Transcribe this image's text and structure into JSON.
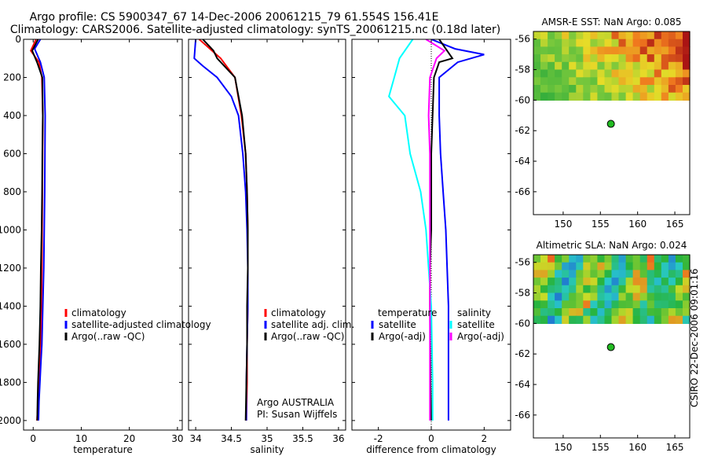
{
  "header": {
    "line1": "Argo profile: CS 5900347_67 14-Dec-2006 20061215_79 61.554S 156.41E",
    "line2": "Climatology: CARS2006. Satellite-adjusted climatology: synTS_20061215.nc (0.18d later)"
  },
  "credit": "CSIRO 22-Dec-2006 09:01:16",
  "chart_data": [
    {
      "type": "line",
      "id": "temperature",
      "xlabel": "temperature",
      "ylabel": "",
      "xlim": [
        -2,
        31
      ],
      "ylim": [
        2050,
        0
      ],
      "xticks": [
        0,
        10,
        20,
        30
      ],
      "yticks": [
        0,
        200,
        400,
        600,
        800,
        1000,
        1200,
        1400,
        1600,
        1800,
        2000
      ],
      "legend": [
        "climatology",
        "satellite-adjusted climatology",
        "Argo(..raw -QC)"
      ],
      "legend_position": "center-right",
      "series": [
        {
          "name": "climatology",
          "color": "#ff0000",
          "x": [
            0.6,
            -0.5,
            1.2,
            1.8,
            2.0,
            1.95,
            1.9,
            1.85,
            1.8,
            1.7,
            1.55,
            1.4,
            1.2,
            1.0,
            0.8
          ],
          "y": [
            0,
            60,
            120,
            200,
            400,
            600,
            800,
            1000,
            1200,
            1400,
            1600,
            1700,
            1800,
            1900,
            2000
          ]
        },
        {
          "name": "satellite-adjusted climatology",
          "color": "#0000ff",
          "x": [
            1.5,
            0.3,
            1.5,
            2.3,
            2.5,
            2.45,
            2.4,
            2.3,
            2.2,
            2.0,
            1.8,
            1.6,
            1.4,
            1.2,
            1.1
          ],
          "y": [
            0,
            50,
            120,
            200,
            400,
            600,
            800,
            1000,
            1200,
            1400,
            1600,
            1700,
            1800,
            1900,
            2000
          ]
        },
        {
          "name": "Argo(..raw -QC)",
          "color": "#000000",
          "x": [
            1.0,
            -0.2,
            0.8,
            1.9,
            2.0,
            1.9,
            1.85,
            1.75,
            1.6,
            1.5,
            1.3,
            1.15,
            1.0,
            0.9,
            0.85
          ],
          "y": [
            0,
            60,
            120,
            200,
            400,
            600,
            800,
            1000,
            1200,
            1400,
            1600,
            1700,
            1800,
            1900,
            2000
          ]
        }
      ]
    },
    {
      "type": "line",
      "id": "salinity",
      "xlabel": "salinity",
      "ylabel": "",
      "xlim": [
        33.9,
        36.1
      ],
      "ylim": [
        2050,
        0
      ],
      "xticks": [
        34,
        34.5,
        35,
        35.5,
        36
      ],
      "legend": [
        "climatology",
        "satellite adj. clim.",
        "Argo(..raw -QC)"
      ],
      "legend_position": "center-right",
      "annotations": [
        "Argo AUSTRALIA",
        "PI: Susan Wijffels"
      ],
      "series": [
        {
          "name": "climatology",
          "color": "#ff0000",
          "x": [
            34.05,
            34.2,
            34.35,
            34.55,
            34.64,
            34.7,
            34.72,
            34.73,
            34.73,
            34.73,
            34.72,
            34.72,
            34.71
          ],
          "y": [
            0,
            50,
            100,
            200,
            400,
            600,
            800,
            1000,
            1200,
            1400,
            1600,
            1800,
            2000
          ]
        },
        {
          "name": "satellite adj. clim.",
          "color": "#0000ff",
          "x": [
            34.0,
            33.98,
            34.1,
            34.3,
            34.5,
            34.6,
            34.66,
            34.7,
            34.72,
            34.73,
            34.73,
            34.72,
            34.71,
            34.71
          ],
          "y": [
            0,
            100,
            140,
            200,
            300,
            400,
            600,
            800,
            1000,
            1200,
            1400,
            1600,
            1800,
            2000
          ]
        },
        {
          "name": "Argo(..raw -QC)",
          "color": "#000000",
          "x": [
            34.1,
            34.25,
            34.3,
            34.55,
            34.65,
            34.7,
            34.72,
            34.73,
            34.73,
            34.72,
            34.72,
            34.71,
            34.7
          ],
          "y": [
            0,
            60,
            100,
            200,
            400,
            600,
            800,
            1000,
            1200,
            1400,
            1600,
            1800,
            2000
          ]
        }
      ]
    },
    {
      "type": "line",
      "id": "difference",
      "xlabel": "difference from climatology",
      "ylabel": "",
      "xlim": [
        -3,
        3
      ],
      "ylim": [
        2050,
        0
      ],
      "xticks": [
        -2,
        0,
        2
      ],
      "legend_groups": [
        {
          "title": "temperature",
          "entries": [
            "satellite",
            "Argo(-adj)"
          ]
        },
        {
          "title": "salinity",
          "entries": [
            "satellite",
            "Argo(-adj)"
          ]
        }
      ],
      "legend_position": "center",
      "series": [
        {
          "name": "temperature satellite",
          "color": "#0000ff",
          "x": [
            0,
            0.9,
            2.0,
            1.0,
            0.3,
            0.3,
            0.35,
            0.45,
            0.55,
            0.6,
            0.65,
            0.65,
            0.65
          ],
          "y": [
            0,
            50,
            80,
            120,
            200,
            400,
            600,
            800,
            1000,
            1200,
            1400,
            1800,
            2000
          ]
        },
        {
          "name": "temperature Argo(-adj)",
          "color": "#000000",
          "x": [
            0.3,
            0.8,
            0.3,
            0.1,
            0.05,
            0.0,
            0.0,
            0.0,
            -0.05,
            -0.05,
            -0.03,
            0.0
          ],
          "y": [
            0,
            100,
            120,
            200,
            400,
            600,
            800,
            1000,
            1200,
            1400,
            1800,
            2000
          ]
        },
        {
          "name": "salinity satellite",
          "color": "#00ffff",
          "x": [
            -0.7,
            -1.2,
            -1.4,
            -1.6,
            -1.0,
            -0.8,
            -0.4,
            -0.2,
            -0.1,
            0.0,
            0.05,
            0.05
          ],
          "y": [
            0,
            100,
            200,
            300,
            400,
            600,
            800,
            1000,
            1200,
            1400,
            1800,
            2000
          ]
        },
        {
          "name": "salinity Argo(-adj)",
          "color": "#ff00ff",
          "x": [
            -0.2,
            0.5,
            0.2,
            -0.05,
            -0.1,
            -0.05,
            -0.05,
            -0.05,
            -0.05,
            -0.05,
            -0.05,
            -0.05
          ],
          "y": [
            0,
            60,
            100,
            200,
            400,
            600,
            800,
            1000,
            1200,
            1400,
            1800,
            2000
          ]
        }
      ]
    },
    {
      "type": "heatmap",
      "id": "sst-map",
      "title": "AMSR-E SST: NaN Argo: 0.085",
      "xlim": [
        146,
        167
      ],
      "ylim": [
        -67.5,
        -55.5
      ],
      "xticks": [
        150,
        155,
        160,
        165
      ],
      "yticks": [
        -56,
        -58,
        -60,
        -62,
        -64,
        -66
      ],
      "data_lat_range": [
        -60,
        -55.5
      ],
      "palette": "green-yellow-red",
      "argo_position": {
        "lon": 156.41,
        "lat": -61.554
      }
    },
    {
      "type": "heatmap",
      "id": "sla-map",
      "title": "Altimetric SLA: NaN Argo: 0.024",
      "xlim": [
        146,
        167
      ],
      "ylim": [
        -67.5,
        -55.5
      ],
      "xticks": [
        150,
        155,
        160,
        165
      ],
      "yticks": [
        -56,
        -58,
        -60,
        -62,
        -64,
        -66
      ],
      "data_lat_range": [
        -60,
        -55.5
      ],
      "palette": "blue-green-yellow-red",
      "argo_position": {
        "lon": 156.41,
        "lat": -61.554
      }
    }
  ]
}
